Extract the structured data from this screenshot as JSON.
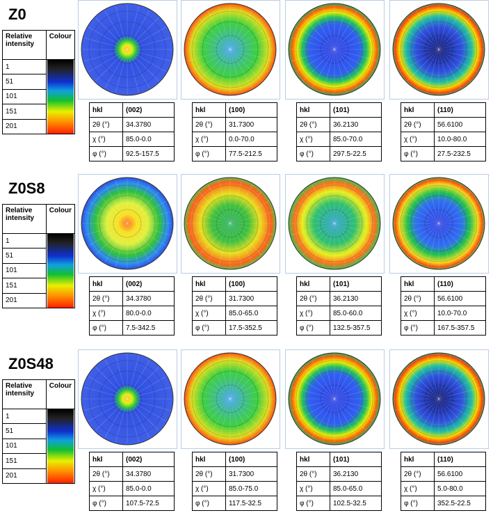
{
  "sections": [
    {
      "title": "Z0",
      "legend": {
        "headers": [
          "Relative intensity",
          "Colour"
        ],
        "levels": [
          "1",
          "51",
          "101",
          "151",
          "201"
        ]
      },
      "figures": [
        {
          "rows": [
            [
              "hkl",
              "(002)"
            ],
            [
              "2θ (°)",
              "34.3780"
            ],
            [
              "χ (°)",
              "85.0-0.0"
            ],
            [
              "φ (°)",
              "92.5-157.5"
            ]
          ]
        },
        {
          "rows": [
            [
              "hkl",
              "(100)"
            ],
            [
              "2θ (°)",
              "31.7300"
            ],
            [
              "χ (°)",
              "0.0-70.0"
            ],
            [
              "φ (°)",
              "77.5-212.5"
            ]
          ]
        },
        {
          "rows": [
            [
              "hkl",
              "(101)"
            ],
            [
              "2θ (°)",
              "36.2130"
            ],
            [
              "χ (°)",
              "85.0-70.0"
            ],
            [
              "φ (°)",
              "297.5-22.5"
            ]
          ]
        },
        {
          "rows": [
            [
              "hkl",
              "(110)"
            ],
            [
              "2θ (°)",
              "56.6100"
            ],
            [
              "χ (°)",
              "10.0-80.0"
            ],
            [
              "φ (°)",
              "27.5-232.5"
            ]
          ]
        }
      ]
    },
    {
      "title": "Z0S8",
      "legend": {
        "headers": [
          "Relative intensity",
          "Colour"
        ],
        "levels": [
          "1",
          "51",
          "101",
          "151",
          "201"
        ]
      },
      "figures": [
        {
          "rows": [
            [
              "hkl",
              "(002)"
            ],
            [
              "2θ (°)",
              "34.3780"
            ],
            [
              "χ (°)",
              "80.0-0.0"
            ],
            [
              "φ (°)",
              "7.5-342.5"
            ]
          ]
        },
        {
          "rows": [
            [
              "hkl",
              "(100)"
            ],
            [
              "2θ (°)",
              "31.7300"
            ],
            [
              "χ (°)",
              "85.0-65.0"
            ],
            [
              "φ (°)",
              "17.5-352.5"
            ]
          ]
        },
        {
          "rows": [
            [
              "hkl",
              "(101)"
            ],
            [
              "2θ (°)",
              "36.2130"
            ],
            [
              "χ (°)",
              "85.0-60.0"
            ],
            [
              "φ (°)",
              "132.5-357.5"
            ]
          ]
        },
        {
          "rows": [
            [
              "hkl",
              "(110)"
            ],
            [
              "2θ (°)",
              "56.6100"
            ],
            [
              "χ (°)",
              "10.0-70.0"
            ],
            [
              "φ (°)",
              "167.5-357.5"
            ]
          ]
        }
      ]
    },
    {
      "title": "Z0S48",
      "legend": {
        "headers": [
          "Relative intensity",
          "Colour"
        ],
        "levels": [
          "1",
          "51",
          "101",
          "151",
          "201"
        ]
      },
      "figures": [
        {
          "rows": [
            [
              "hkl",
              "(002)"
            ],
            [
              "2θ (°)",
              "34.3780"
            ],
            [
              "χ (°)",
              "85.0-0.0"
            ],
            [
              "φ (°)",
              "107.5-72.5"
            ]
          ]
        },
        {
          "rows": [
            [
              "hkl",
              "(100)"
            ],
            [
              "2θ (°)",
              "31.7300"
            ],
            [
              "χ (°)",
              "85.0-75.0"
            ],
            [
              "φ (°)",
              "117.5-32.5"
            ]
          ]
        },
        {
          "rows": [
            [
              "hkl",
              "(101)"
            ],
            [
              "2θ (°)",
              "36.2130"
            ],
            [
              "χ (°)",
              "85.0-65.0"
            ],
            [
              "φ (°)",
              "102.5-32.5"
            ]
          ]
        },
        {
          "rows": [
            [
              "hkl",
              "(110)"
            ],
            [
              "2θ (°)",
              "56.6100"
            ],
            [
              "χ (°)",
              "5.0-80.0"
            ],
            [
              "φ (°)",
              "352.5-22.5"
            ]
          ]
        }
      ]
    }
  ]
}
